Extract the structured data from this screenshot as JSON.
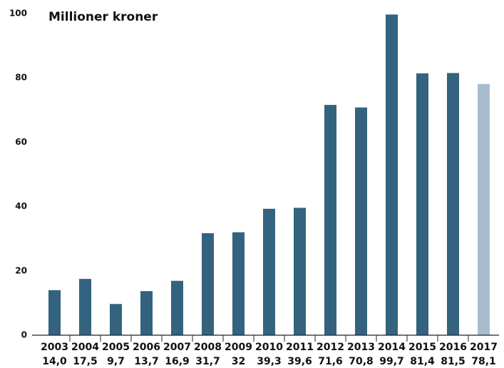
{
  "chart_data": {
    "type": "bar",
    "title": "Millioner kroner",
    "categories": [
      "2003",
      "2004",
      "2005",
      "2006",
      "2007",
      "2008",
      "2009",
      "2010",
      "2011",
      "2012",
      "2013",
      "2014",
      "2015",
      "2016",
      "2017"
    ],
    "values": [
      14.0,
      17.5,
      9.7,
      13.7,
      16.9,
      31.7,
      32,
      39.3,
      39.6,
      71.6,
      70.8,
      99.7,
      81.4,
      81.5,
      78.1
    ],
    "value_labels": [
      "14,0",
      "17,5",
      "9,7",
      "13,7",
      "16,9",
      "31,7",
      "32",
      "39,3",
      "39,6",
      "71,6",
      "70,8",
      "99,7",
      "81,4",
      "81,5",
      "78,1"
    ],
    "colors": [
      "#33637e",
      "#33637e",
      "#33637e",
      "#33637e",
      "#33637e",
      "#33637e",
      "#33637e",
      "#33637e",
      "#33637e",
      "#33637e",
      "#33637e",
      "#33637e",
      "#33637e",
      "#33637e",
      "#a9bccd"
    ],
    "ylim": [
      0,
      100
    ],
    "yticks": [
      0,
      20,
      40,
      60,
      80,
      100
    ],
    "grid": false
  }
}
